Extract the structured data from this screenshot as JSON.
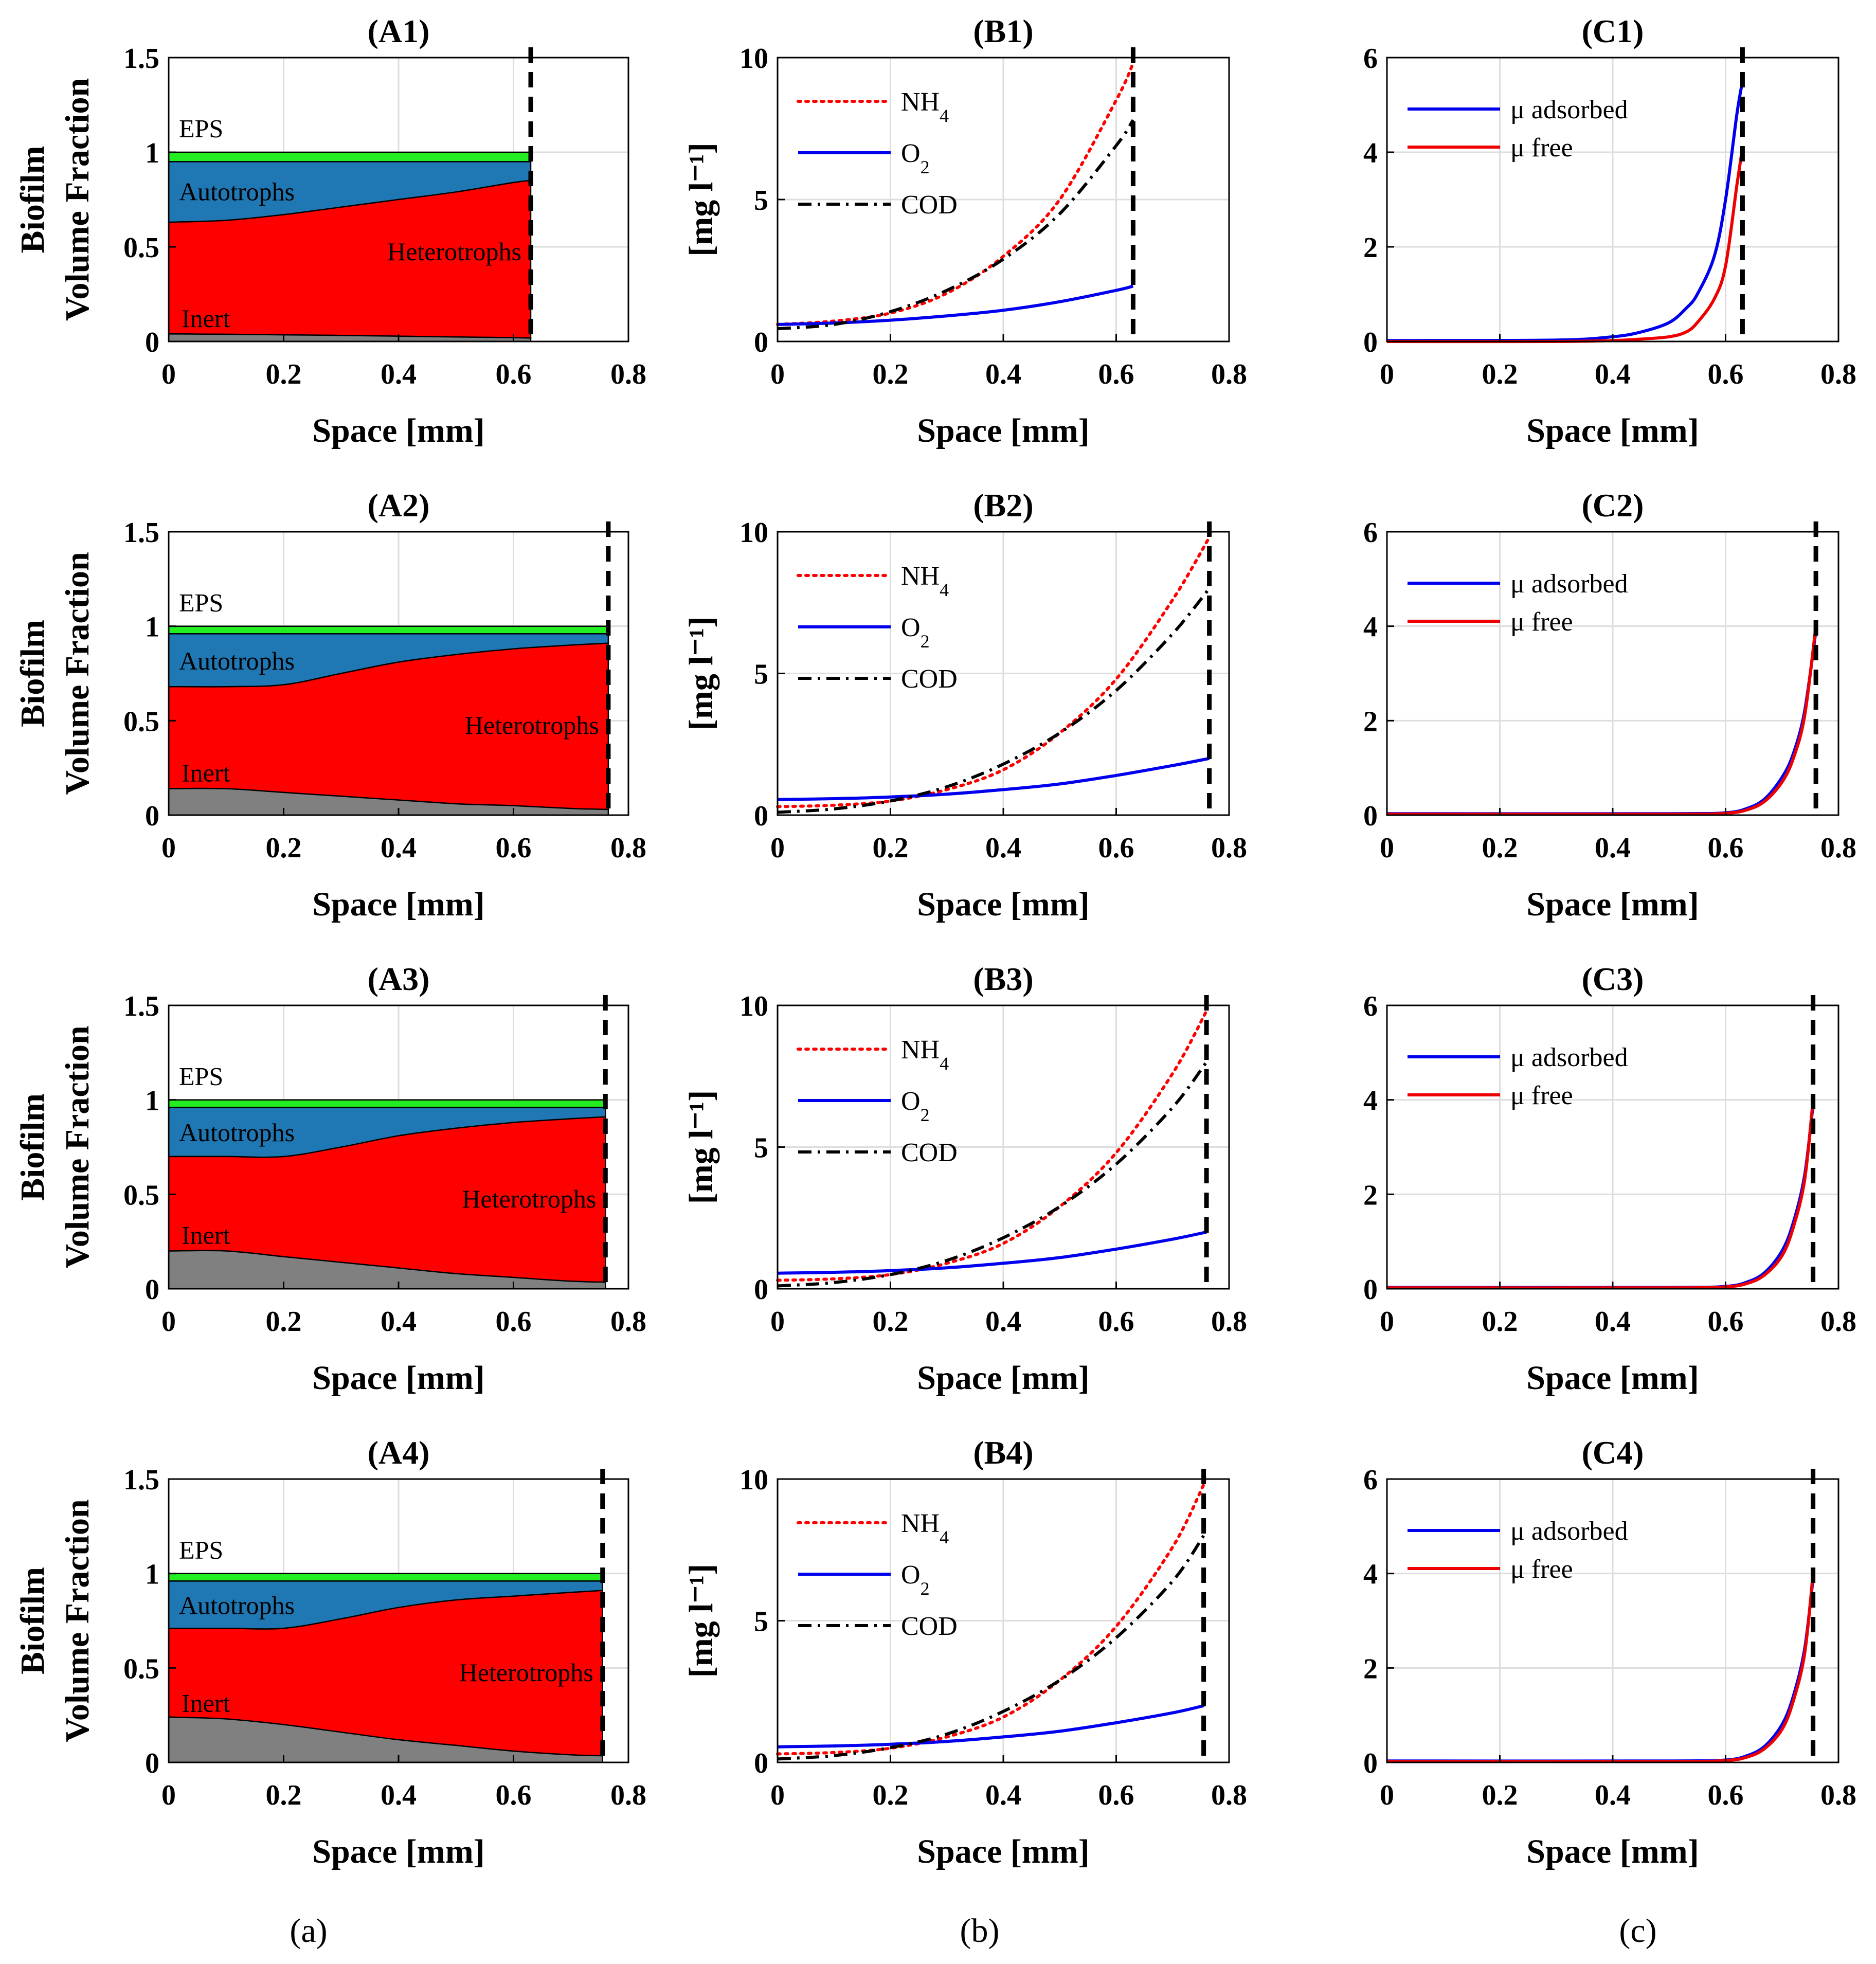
{
  "figure": {
    "captions": [
      "(a)",
      "(b)",
      "(c)"
    ]
  },
  "colors": {
    "eps": "#22ee22",
    "autotrophs": "#1f77b4",
    "heterotrophs": "#ff0000",
    "inert": "#808080",
    "nh4": "#ff0000",
    "o2": "#0000ee",
    "cod": "#000000",
    "mu_adsorbed": "#0000ee",
    "mu_free": "#ee0000",
    "interface": "#000000"
  },
  "chart_data": [
    {
      "id": "A1",
      "type": "area",
      "title": "(A1)",
      "xlabel": "Space [mm]",
      "ylabel_lines": [
        "Biofilm",
        "Volume Fraction"
      ],
      "xlim": [
        0,
        0.8
      ],
      "ylim": [
        0,
        1.5
      ],
      "xticks": [
        "0",
        "0.2",
        "0.4",
        "0.6",
        "0.8"
      ],
      "yticks": [
        "0",
        "0.5",
        "1",
        "1.5"
      ],
      "xtick_values": [
        0,
        0.2,
        0.4,
        0.6,
        0.8
      ],
      "ytick_values": [
        0,
        0.5,
        1,
        1.5
      ],
      "thickness": 0.63,
      "x": [
        0,
        0.1,
        0.2,
        0.3,
        0.4,
        0.5,
        0.6,
        0.63
      ],
      "boundaries": {
        "inert_top": [
          0.04,
          0.038,
          0.035,
          0.032,
          0.028,
          0.024,
          0.02,
          0.018
        ],
        "heterotrophs_top": [
          0.63,
          0.64,
          0.67,
          0.71,
          0.75,
          0.79,
          0.84,
          0.85
        ],
        "autotrophs_top": [
          0.95,
          0.95,
          0.95,
          0.95,
          0.95,
          0.95,
          0.95,
          0.95
        ],
        "eps_top": [
          1.0,
          1.0,
          1.0,
          1.0,
          1.0,
          1.0,
          1.0,
          1.0
        ]
      },
      "labels": {
        "eps": "EPS",
        "autotrophs": "Autotrophs",
        "heterotrophs": "Heterotrophs",
        "inert": "Inert"
      }
    },
    {
      "id": "B1",
      "type": "line",
      "title": "(B1)",
      "xlabel": "Space [mm]",
      "ylabel": "[mg l⁻¹]",
      "xlim": [
        0,
        0.8
      ],
      "ylim": [
        0,
        10
      ],
      "xticks": [
        "0",
        "0.2",
        "0.4",
        "0.6",
        "0.8"
      ],
      "yticks": [
        "0",
        "5",
        "10"
      ],
      "xtick_values": [
        0,
        0.2,
        0.4,
        0.6,
        0.8
      ],
      "ytick_values": [
        0,
        5,
        10
      ],
      "thickness": 0.63,
      "x": [
        0,
        0.1,
        0.2,
        0.3,
        0.4,
        0.5,
        0.6,
        0.63
      ],
      "series": [
        {
          "key": "nh4",
          "name": "NH",
          "sub": "4",
          "style": "dotted",
          "values": [
            0.6,
            0.72,
            1.0,
            1.7,
            3.0,
            5.0,
            8.5,
            9.8
          ]
        },
        {
          "key": "o2",
          "name": "O",
          "sub": "2",
          "style": "solid",
          "values": [
            0.6,
            0.65,
            0.75,
            0.9,
            1.1,
            1.4,
            1.8,
            1.95
          ]
        },
        {
          "key": "cod",
          "name": "COD",
          "sub": "",
          "style": "dashdot",
          "values": [
            0.45,
            0.6,
            1.05,
            1.8,
            2.9,
            4.5,
            6.9,
            7.8
          ]
        }
      ]
    },
    {
      "id": "C1",
      "type": "line",
      "title": "(C1)",
      "xlabel": "Space [mm]",
      "ylabel": "",
      "xlim": [
        0,
        0.8
      ],
      "ylim": [
        0,
        6
      ],
      "xticks": [
        "0",
        "0.2",
        "0.4",
        "0.6",
        "0.8"
      ],
      "yticks": [
        "0",
        "2",
        "4",
        "6"
      ],
      "xtick_values": [
        0,
        0.2,
        0.4,
        0.6,
        0.8
      ],
      "ytick_values": [
        0,
        2,
        4,
        6
      ],
      "thickness": 0.63,
      "x": [
        0,
        0.3,
        0.4,
        0.45,
        0.5,
        0.53,
        0.55,
        0.58,
        0.6,
        0.62,
        0.63
      ],
      "series": [
        {
          "key": "mu_adsorbed",
          "name": "μ adsorbed",
          "sub": "",
          "style": "solid",
          "values": [
            0.02,
            0.03,
            0.1,
            0.2,
            0.4,
            0.7,
            1.0,
            1.8,
            3.0,
            4.8,
            5.5
          ]
        },
        {
          "key": "mu_free",
          "name": "μ free",
          "sub": "",
          "style": "solid",
          "values": [
            0.0,
            0.0,
            0.02,
            0.05,
            0.1,
            0.2,
            0.4,
            0.9,
            1.6,
            3.3,
            4.1
          ]
        }
      ]
    },
    {
      "id": "A2",
      "type": "area",
      "title": "(A2)",
      "xlabel": "Space [mm]",
      "ylabel_lines": [
        "Biofilm",
        "Volume Fraction"
      ],
      "xlim": [
        0,
        0.8
      ],
      "ylim": [
        0,
        1.5
      ],
      "xticks": [
        "0",
        "0.2",
        "0.4",
        "0.6",
        "0.8"
      ],
      "yticks": [
        "0",
        "0.5",
        "1",
        "1.5"
      ],
      "xtick_values": [
        0,
        0.2,
        0.4,
        0.6,
        0.8
      ],
      "ytick_values": [
        0,
        0.5,
        1,
        1.5
      ],
      "thickness": 0.765,
      "x": [
        0,
        0.1,
        0.2,
        0.3,
        0.4,
        0.5,
        0.6,
        0.7,
        0.765
      ],
      "boundaries": {
        "inert_top": [
          0.14,
          0.14,
          0.12,
          0.1,
          0.08,
          0.06,
          0.05,
          0.035,
          0.03
        ],
        "heterotrophs_top": [
          0.68,
          0.68,
          0.69,
          0.75,
          0.81,
          0.85,
          0.88,
          0.9,
          0.91
        ],
        "autotrophs_top": [
          0.96,
          0.96,
          0.96,
          0.96,
          0.96,
          0.96,
          0.96,
          0.96,
          0.96
        ],
        "eps_top": [
          1.0,
          1.0,
          1.0,
          1.0,
          1.0,
          1.0,
          1.0,
          1.0,
          1.0
        ]
      },
      "labels": {
        "eps": "EPS",
        "autotrophs": "Autotrophs",
        "heterotrophs": "Heterotrophs",
        "inert": "Inert"
      }
    },
    {
      "id": "B2",
      "type": "line",
      "title": "(B2)",
      "xlabel": "Space [mm]",
      "ylabel": "[mg l⁻¹]",
      "xlim": [
        0,
        0.8
      ],
      "ylim": [
        0,
        10
      ],
      "xticks": [
        "0",
        "0.2",
        "0.4",
        "0.6",
        "0.8"
      ],
      "yticks": [
        "0",
        "5",
        "10"
      ],
      "xtick_values": [
        0,
        0.2,
        0.4,
        0.6,
        0.8
      ],
      "ytick_values": [
        0,
        5,
        10
      ],
      "thickness": 0.765,
      "x": [
        0,
        0.1,
        0.2,
        0.3,
        0.4,
        0.5,
        0.6,
        0.7,
        0.765
      ],
      "series": [
        {
          "key": "nh4",
          "name": "NH",
          "sub": "4",
          "style": "dotted",
          "values": [
            0.3,
            0.35,
            0.5,
            0.9,
            1.6,
            2.9,
            4.8,
            7.6,
            9.8
          ]
        },
        {
          "key": "o2",
          "name": "O",
          "sub": "2",
          "style": "solid",
          "values": [
            0.55,
            0.58,
            0.64,
            0.74,
            0.9,
            1.1,
            1.4,
            1.75,
            2.0
          ]
        },
        {
          "key": "cod",
          "name": "COD",
          "sub": "",
          "style": "dashdot",
          "values": [
            0.1,
            0.22,
            0.5,
            1.0,
            1.8,
            2.9,
            4.4,
            6.4,
            8.0
          ]
        }
      ]
    },
    {
      "id": "C2",
      "type": "line",
      "title": "(C2)",
      "xlabel": "Space [mm]",
      "ylabel": "",
      "xlim": [
        0,
        0.8
      ],
      "ylim": [
        0,
        6
      ],
      "xticks": [
        "0",
        "0.2",
        "0.4",
        "0.6",
        "0.8"
      ],
      "yticks": [
        "0",
        "2",
        "4",
        "6"
      ],
      "xtick_values": [
        0,
        0.2,
        0.4,
        0.6,
        0.8
      ],
      "ytick_values": [
        0,
        2,
        4,
        6
      ],
      "thickness": 0.76,
      "x": [
        0,
        0.5,
        0.6,
        0.64,
        0.67,
        0.7,
        0.72,
        0.74,
        0.76
      ],
      "series": [
        {
          "key": "mu_adsorbed",
          "name": "μ adsorbed",
          "sub": "",
          "style": "solid",
          "values": [
            0.03,
            0.03,
            0.05,
            0.15,
            0.35,
            0.8,
            1.3,
            2.2,
            3.9
          ]
        },
        {
          "key": "mu_free",
          "name": "μ free",
          "sub": "",
          "style": "solid",
          "values": [
            0.02,
            0.02,
            0.04,
            0.12,
            0.3,
            0.7,
            1.2,
            2.1,
            4.0
          ]
        }
      ]
    },
    {
      "id": "A3",
      "type": "area",
      "title": "(A3)",
      "xlabel": "Space [mm]",
      "ylabel_lines": [
        "Biofilm",
        "Volume Fraction"
      ],
      "xlim": [
        0,
        0.8
      ],
      "ylim": [
        0,
        1.5
      ],
      "xticks": [
        "0",
        "0.2",
        "0.4",
        "0.6",
        "0.8"
      ],
      "yticks": [
        "0",
        "0.5",
        "1",
        "1.5"
      ],
      "xtick_values": [
        0,
        0.2,
        0.4,
        0.6,
        0.8
      ],
      "ytick_values": [
        0,
        0.5,
        1,
        1.5
      ],
      "thickness": 0.76,
      "x": [
        0,
        0.1,
        0.2,
        0.3,
        0.4,
        0.5,
        0.6,
        0.7,
        0.76
      ],
      "boundaries": {
        "inert_top": [
          0.2,
          0.2,
          0.17,
          0.14,
          0.11,
          0.08,
          0.06,
          0.04,
          0.035
        ],
        "heterotrophs_top": [
          0.7,
          0.7,
          0.7,
          0.75,
          0.81,
          0.85,
          0.88,
          0.9,
          0.91
        ],
        "autotrophs_top": [
          0.96,
          0.96,
          0.96,
          0.96,
          0.96,
          0.96,
          0.96,
          0.96,
          0.96
        ],
        "eps_top": [
          1.0,
          1.0,
          1.0,
          1.0,
          1.0,
          1.0,
          1.0,
          1.0,
          1.0
        ]
      },
      "labels": {
        "eps": "EPS",
        "autotrophs": "Autotrophs",
        "heterotrophs": "Heterotrophs",
        "inert": "Inert"
      }
    },
    {
      "id": "B3",
      "type": "line",
      "title": "(B3)",
      "xlabel": "Space [mm]",
      "ylabel": "[mg l⁻¹]",
      "xlim": [
        0,
        0.8
      ],
      "ylim": [
        0,
        10
      ],
      "xticks": [
        "0",
        "0.2",
        "0.4",
        "0.6",
        "0.8"
      ],
      "yticks": [
        "0",
        "5",
        "10"
      ],
      "xtick_values": [
        0,
        0.2,
        0.4,
        0.6,
        0.8
      ],
      "ytick_values": [
        0,
        5,
        10
      ],
      "thickness": 0.76,
      "x": [
        0,
        0.1,
        0.2,
        0.3,
        0.4,
        0.5,
        0.6,
        0.7,
        0.76
      ],
      "series": [
        {
          "key": "nh4",
          "name": "NH",
          "sub": "4",
          "style": "dotted",
          "values": [
            0.3,
            0.35,
            0.5,
            0.9,
            1.6,
            2.9,
            4.8,
            7.6,
            9.8
          ]
        },
        {
          "key": "o2",
          "name": "O",
          "sub": "2",
          "style": "solid",
          "values": [
            0.55,
            0.58,
            0.64,
            0.74,
            0.9,
            1.1,
            1.4,
            1.75,
            2.0
          ]
        },
        {
          "key": "cod",
          "name": "COD",
          "sub": "",
          "style": "dashdot",
          "values": [
            0.1,
            0.22,
            0.5,
            1.0,
            1.8,
            2.9,
            4.4,
            6.4,
            8.0
          ]
        }
      ]
    },
    {
      "id": "C3",
      "type": "line",
      "title": "(C3)",
      "xlabel": "Space [mm]",
      "ylabel": "",
      "xlim": [
        0,
        0.8
      ],
      "ylim": [
        0,
        6
      ],
      "xticks": [
        "0",
        "0.2",
        "0.4",
        "0.6",
        "0.8"
      ],
      "yticks": [
        "0",
        "2",
        "4",
        "6"
      ],
      "xtick_values": [
        0,
        0.2,
        0.4,
        0.6,
        0.8
      ],
      "ytick_values": [
        0,
        2,
        4,
        6
      ],
      "thickness": 0.755,
      "x": [
        0,
        0.5,
        0.6,
        0.64,
        0.67,
        0.7,
        0.72,
        0.74,
        0.755
      ],
      "series": [
        {
          "key": "mu_adsorbed",
          "name": "μ adsorbed",
          "sub": "",
          "style": "solid",
          "values": [
            0.03,
            0.03,
            0.05,
            0.15,
            0.35,
            0.8,
            1.4,
            2.4,
            3.9
          ]
        },
        {
          "key": "mu_free",
          "name": "μ free",
          "sub": "",
          "style": "solid",
          "values": [
            0.02,
            0.02,
            0.04,
            0.12,
            0.3,
            0.7,
            1.3,
            2.3,
            4.0
          ]
        }
      ]
    },
    {
      "id": "A4",
      "type": "area",
      "title": "(A4)",
      "xlabel": "Space [mm]",
      "ylabel_lines": [
        "Biofilm",
        "Volume Fraction"
      ],
      "xlim": [
        0,
        0.8
      ],
      "ylim": [
        0,
        1.5
      ],
      "xticks": [
        "0",
        "0.2",
        "0.4",
        "0.6",
        "0.8"
      ],
      "yticks": [
        "0",
        "0.5",
        "1",
        "1.5"
      ],
      "xtick_values": [
        0,
        0.2,
        0.4,
        0.6,
        0.8
      ],
      "ytick_values": [
        0,
        0.5,
        1,
        1.5
      ],
      "thickness": 0.755,
      "x": [
        0,
        0.1,
        0.2,
        0.3,
        0.4,
        0.5,
        0.6,
        0.7,
        0.755
      ],
      "boundaries": {
        "inert_top": [
          0.24,
          0.23,
          0.2,
          0.16,
          0.12,
          0.09,
          0.06,
          0.04,
          0.035
        ],
        "heterotrophs_top": [
          0.71,
          0.71,
          0.71,
          0.76,
          0.82,
          0.86,
          0.88,
          0.9,
          0.91
        ],
        "autotrophs_top": [
          0.96,
          0.96,
          0.96,
          0.96,
          0.96,
          0.96,
          0.96,
          0.96,
          0.96
        ],
        "eps_top": [
          1.0,
          1.0,
          1.0,
          1.0,
          1.0,
          1.0,
          1.0,
          1.0,
          1.0
        ]
      },
      "labels": {
        "eps": "EPS",
        "autotrophs": "Autotrophs",
        "heterotrophs": "Heterotrophs",
        "inert": "Inert"
      }
    },
    {
      "id": "B4",
      "type": "line",
      "title": "(B4)",
      "xlabel": "Space [mm]",
      "ylabel": "[mg l⁻¹]",
      "xlim": [
        0,
        0.8
      ],
      "ylim": [
        0,
        10
      ],
      "xticks": [
        "0",
        "0.2",
        "0.4",
        "0.6",
        "0.8"
      ],
      "yticks": [
        "0",
        "5",
        "10"
      ],
      "xtick_values": [
        0,
        0.2,
        0.4,
        0.6,
        0.8
      ],
      "ytick_values": [
        0,
        5,
        10
      ],
      "thickness": 0.755,
      "x": [
        0,
        0.1,
        0.2,
        0.3,
        0.4,
        0.5,
        0.6,
        0.7,
        0.755
      ],
      "series": [
        {
          "key": "nh4",
          "name": "NH",
          "sub": "4",
          "style": "dotted",
          "values": [
            0.3,
            0.35,
            0.5,
            0.9,
            1.6,
            2.9,
            4.8,
            7.6,
            9.8
          ]
        },
        {
          "key": "o2",
          "name": "O",
          "sub": "2",
          "style": "solid",
          "values": [
            0.55,
            0.58,
            0.64,
            0.74,
            0.9,
            1.1,
            1.4,
            1.75,
            2.0
          ]
        },
        {
          "key": "cod",
          "name": "COD",
          "sub": "",
          "style": "dashdot",
          "values": [
            0.12,
            0.24,
            0.52,
            1.0,
            1.8,
            2.9,
            4.4,
            6.4,
            8.0
          ]
        }
      ]
    },
    {
      "id": "C4",
      "type": "line",
      "title": "(C4)",
      "xlabel": "Space [mm]",
      "ylabel": "",
      "xlim": [
        0,
        0.8
      ],
      "ylim": [
        0,
        6
      ],
      "xticks": [
        "0",
        "0.2",
        "0.4",
        "0.6",
        "0.8"
      ],
      "yticks": [
        "0",
        "2",
        "4",
        "6"
      ],
      "xtick_values": [
        0,
        0.2,
        0.4,
        0.6,
        0.8
      ],
      "ytick_values": [
        0,
        2,
        4,
        6
      ],
      "thickness": 0.755,
      "x": [
        0,
        0.5,
        0.6,
        0.64,
        0.67,
        0.7,
        0.72,
        0.74,
        0.755
      ],
      "series": [
        {
          "key": "mu_adsorbed",
          "name": "μ adsorbed",
          "sub": "",
          "style": "solid",
          "values": [
            0.03,
            0.03,
            0.05,
            0.15,
            0.35,
            0.8,
            1.4,
            2.4,
            3.9
          ]
        },
        {
          "key": "mu_free",
          "name": "μ free",
          "sub": "",
          "style": "solid",
          "values": [
            0.02,
            0.02,
            0.04,
            0.12,
            0.3,
            0.7,
            1.3,
            2.3,
            4.0
          ]
        }
      ]
    }
  ]
}
